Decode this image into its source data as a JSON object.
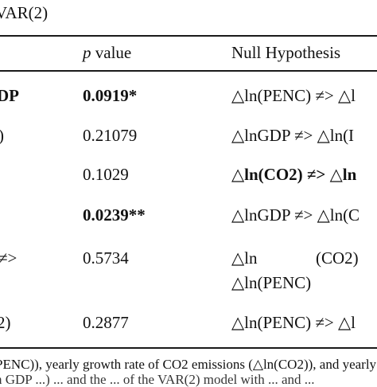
{
  "caption": "VAR(2)",
  "header": {
    "col1": "",
    "col2_italic": "p",
    "col2_rest": " value",
    "col3": "Null Hypothesis"
  },
  "rows": [
    {
      "label": "DP",
      "label_bold": true,
      "pvalue": "0.0919*",
      "pvalue_bold": true,
      "hyp": "△ln(PENC) ≠> △l",
      "hyp_bold": false
    },
    {
      "label": ")",
      "label_bold": false,
      "pvalue": "0.21079",
      "pvalue_bold": false,
      "hyp": "△lnGDP ≠> △ln(I",
      "hyp_bold": false
    },
    {
      "label": "",
      "label_bold": false,
      "pvalue": "0.1029",
      "pvalue_bold": false,
      "hyp": "△ln(CO2) ≠> △ln",
      "hyp_bold": true
    },
    {
      "label": "",
      "label_bold": false,
      "pvalue": "0.0239**",
      "pvalue_bold": true,
      "hyp": "△lnGDP ≠> △ln(C",
      "hyp_bold": false
    },
    {
      "label": "≠>",
      "label_bold": false,
      "pvalue": "0.5734",
      "pvalue_bold": false,
      "hyp": "△ln",
      "hyp_extra": "(CO2)",
      "hyp_line2": "△ln(PENC)",
      "hyp_bold": false
    },
    {
      "label": "2)",
      "label_bold": false,
      "pvalue": "0.2877",
      "pvalue_bold": false,
      "hyp": "△ln(PENC) ≠> △l",
      "hyp_bold": false
    }
  ],
  "footnote": {
    "line1": "PENC)), yearly growth rate of CO2 emissions (△ln(CO2)), and yearly",
    "line2": "n GDP ...) ... and the ... of the VAR(2) model with ... and ..."
  }
}
